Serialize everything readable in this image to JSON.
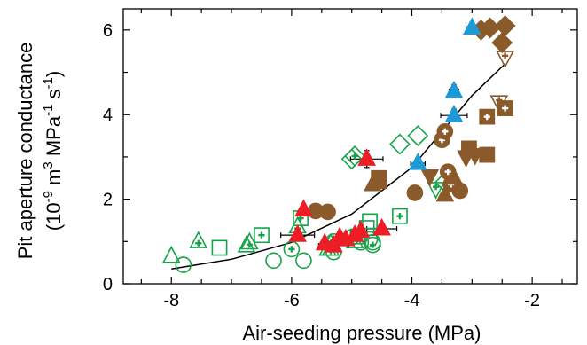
{
  "chart_data": {
    "type": "scatter",
    "xlabel": "Air-seeding pressure (MPa)",
    "ylabel_line1": "Pit aperture conductance",
    "ylabel_line2": {
      "open": "(10",
      "sup1": "-9",
      "mid1": " m",
      "sup2": "3",
      "mid2": " MPa",
      "sup3": "-1",
      "mid3": " s",
      "sup4": "-1",
      "close": ")"
    },
    "xlim": [
      -8.8,
      -1.25
    ],
    "ylim": [
      0,
      6.5
    ],
    "x_ticks": [
      -8,
      -6,
      -4,
      -2
    ],
    "x_tick_labels": [
      "-8",
      "-6",
      "-4",
      "-2"
    ],
    "y_ticks": [
      0,
      2,
      4,
      6
    ],
    "y_tick_labels": [
      "0",
      "2",
      "4",
      "6"
    ],
    "grid": false,
    "legend": "none",
    "colors": {
      "green": "#16a34a",
      "brown": "#8a5a2b",
      "red": "#ee1c25",
      "blue": "#1e9ad6"
    },
    "fit_curve": {
      "type": "exponential",
      "x_range": [
        -8.05,
        -2.45
      ],
      "points": [
        [
          -8.0,
          0.35
        ],
        [
          -7.0,
          0.58
        ],
        [
          -6.0,
          0.98
        ],
        [
          -5.0,
          1.65
        ],
        [
          -4.0,
          2.75
        ],
        [
          -3.0,
          4.45
        ],
        [
          -2.45,
          5.2
        ]
      ]
    },
    "series": [
      {
        "color": "green",
        "marker": "triangle-open",
        "points": [
          [
            -8.0,
            0.65
          ],
          [
            -6.75,
            0.9
          ],
          [
            -5.4,
            0.82
          ],
          [
            -5.35,
            0.95
          ],
          [
            -4.95,
            1.0
          ]
        ]
      },
      {
        "color": "green",
        "marker": "triangle-open-plus",
        "points": [
          [
            -7.55,
            1.0
          ],
          [
            -6.7,
            0.97
          ],
          [
            -5.9,
            1.35
          ],
          [
            -5.35,
            0.82
          ]
        ]
      },
      {
        "color": "green",
        "marker": "circle-open",
        "points": [
          [
            -7.8,
            0.45
          ],
          [
            -6.3,
            0.55
          ],
          [
            -5.8,
            0.55
          ],
          [
            -5.3,
            0.75
          ],
          [
            -4.85,
            0.98
          ],
          [
            -4.7,
            1.05
          ],
          [
            -4.65,
            0.98
          ]
        ]
      },
      {
        "color": "green",
        "marker": "circle-open-plus",
        "points": [
          [
            -6.0,
            0.82
          ],
          [
            -5.3,
            1.0
          ],
          [
            -5.0,
            1.1
          ],
          [
            -4.65,
            0.92
          ]
        ]
      },
      {
        "color": "green",
        "marker": "square-open",
        "points": [
          [
            -7.2,
            0.85
          ],
          [
            -4.7,
            1.48
          ],
          [
            -4.75,
            1.32
          ]
        ]
      },
      {
        "color": "green",
        "marker": "square-open-plus",
        "points": [
          [
            -6.5,
            1.15
          ],
          [
            -5.85,
            1.55
          ],
          [
            -4.9,
            1.12
          ],
          [
            -4.2,
            1.6
          ]
        ]
      },
      {
        "color": "green",
        "marker": "diamond-open",
        "points": [
          [
            -5.0,
            2.95
          ],
          [
            -4.2,
            3.3
          ],
          [
            -3.9,
            3.5
          ],
          [
            -3.45,
            2.4
          ]
        ]
      },
      {
        "color": "green",
        "marker": "diamond-open-plus",
        "points": [
          [
            -4.95,
            3.02
          ]
        ]
      },
      {
        "color": "green",
        "marker": "triangle-down-open-plus",
        "points": [
          [
            -3.6,
            2.25
          ]
        ]
      },
      {
        "color": "brown",
        "marker": "circle-filled",
        "points": [
          [
            -5.6,
            1.72
          ],
          [
            -5.4,
            1.7
          ],
          [
            -3.95,
            2.15
          ],
          [
            -3.2,
            2.2
          ]
        ]
      },
      {
        "color": "brown",
        "marker": "circle-filled-plus",
        "points": [
          [
            -3.5,
            3.4
          ],
          [
            -3.4,
            2.65
          ],
          [
            -3.35,
            2.35
          ],
          [
            -3.45,
            3.6
          ]
        ]
      },
      {
        "color": "brown",
        "marker": "square-filled",
        "points": [
          [
            -4.55,
            2.5
          ],
          [
            -3.05,
            3.2
          ],
          [
            -2.75,
            3.05
          ]
        ]
      },
      {
        "color": "brown",
        "marker": "square-filled-plus",
        "points": [
          [
            -2.75,
            3.95
          ],
          [
            -2.45,
            4.15
          ]
        ]
      },
      {
        "color": "brown",
        "marker": "triangle-filled",
        "points": [
          [
            -4.65,
            2.35
          ],
          [
            -4.55,
            2.4
          ],
          [
            -3.45,
            2.1
          ],
          [
            -3.3,
            2.5
          ]
        ]
      },
      {
        "color": "brown",
        "marker": "triangle-down-filled",
        "points": [
          [
            -3.1,
            3.0
          ],
          [
            -2.95,
            3.05
          ],
          [
            -3.7,
            2.55
          ]
        ]
      },
      {
        "color": "brown",
        "marker": "triangle-down-open-plus",
        "points": [
          [
            -2.45,
            5.35
          ],
          [
            -2.55,
            4.3
          ]
        ]
      },
      {
        "color": "brown",
        "marker": "diamond-filled",
        "points": [
          [
            -2.85,
            6.0
          ],
          [
            -2.7,
            6.05
          ],
          [
            -2.5,
            5.7
          ],
          [
            -2.45,
            6.1
          ]
        ]
      },
      {
        "color": "red",
        "marker": "triangle-filled",
        "points": [
          [
            -5.8,
            1.75
          ],
          [
            -5.9,
            1.15
          ],
          [
            -5.3,
            0.9
          ],
          [
            -5.45,
            0.95
          ],
          [
            -5.2,
            1.1
          ],
          [
            -5.1,
            1.05
          ],
          [
            -4.95,
            1.15
          ],
          [
            -4.85,
            1.25
          ],
          [
            -4.75,
            2.95
          ],
          [
            -4.5,
            1.3
          ]
        ]
      },
      {
        "color": "blue",
        "marker": "triangle-filled",
        "points": [
          [
            -3.9,
            2.85
          ],
          [
            -3.3,
            3.98
          ],
          [
            -3.3,
            4.55
          ],
          [
            -3.0,
            6.05
          ]
        ]
      }
    ],
    "error_bars": [
      {
        "x": -5.8,
        "y": 1.75,
        "xerr": 0.06,
        "yerr": 0.12
      },
      {
        "x": -5.9,
        "y": 1.15,
        "xerr": 0.28,
        "yerr": 0.1
      },
      {
        "x": -5.3,
        "y": 0.9,
        "xerr": 0.25,
        "yerr": 0.1
      },
      {
        "x": -4.75,
        "y": 2.95,
        "xerr": 0.27,
        "yerr": 0.2
      },
      {
        "x": -4.5,
        "y": 1.3,
        "xerr": 0.25,
        "yerr": 0.08
      },
      {
        "x": -3.9,
        "y": 2.85,
        "xerr": 0.12,
        "yerr": 0.12
      },
      {
        "x": -3.3,
        "y": 3.98,
        "xerr": 0.22,
        "yerr": 0.15
      },
      {
        "x": -3.3,
        "y": 4.55,
        "xerr": 0.08,
        "yerr": 0.15
      },
      {
        "x": -3.0,
        "y": 6.05,
        "xerr": 0.1,
        "yerr": 0.12
      }
    ]
  }
}
